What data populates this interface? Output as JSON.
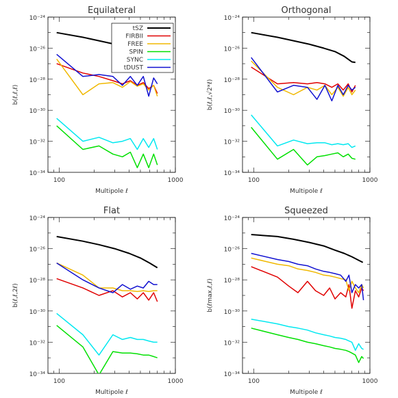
{
  "colors": {
    "tSZ": "#000000",
    "FIRBII": "#e00000",
    "FREE": "#f0b800",
    "SPIN": "#00e000",
    "SYNC": "#00e8f0",
    "tDUST": "#1010d0"
  },
  "chart_data": [
    {
      "type": "line",
      "title": "Equilateral",
      "xlabel": "Multipole ℓ",
      "ylabel": "b(ℓ,ℓ,ℓ)",
      "xscale": "log",
      "yscale": "log",
      "xlim": [
        80,
        1000
      ],
      "ylim": [
        1e-34,
        1e-24
      ],
      "xticklabels": [
        "100",
        "1000"
      ],
      "yticklabels": [
        "10⁻²⁴",
        "10⁻²⁶",
        "10⁻²⁸",
        "10⁻³⁰",
        "10⁻³²",
        "10⁻³⁴"
      ],
      "legend": {
        "placement": "top-right",
        "entries": [
          "tSZ",
          "FIRBII",
          "FREE",
          "SPIN",
          "SYNC",
          "tDUST"
        ]
      },
      "series": [
        {
          "name": "tSZ",
          "x": [
            95,
            160,
            220,
            300,
            400,
            500,
            600,
            700
          ],
          "y": [
            1e-25,
            5e-26,
            3e-26,
            1.8e-26,
            1e-26,
            6e-27,
            3.5e-27,
            2e-27
          ]
        },
        {
          "name": "FIRBII",
          "x": [
            95,
            160,
            220,
            290,
            350,
            410,
            470,
            530,
            590,
            650,
            700
          ],
          "y": [
            1e-27,
            2.5e-28,
            1.5e-28,
            8e-29,
            5e-29,
            8e-29,
            4e-29,
            6e-29,
            2.5e-29,
            4e-29,
            1.2e-29
          ]
        },
        {
          "name": "FREE",
          "x": [
            95,
            160,
            220,
            290,
            350,
            410,
            470,
            530,
            590,
            650,
            700
          ],
          "y": [
            2e-27,
            1e-29,
            5e-29,
            6e-29,
            3e-29,
            7e-29,
            3.5e-29,
            5e-29,
            2e-29,
            4e-29,
            8e-30
          ]
        },
        {
          "name": "SPIN",
          "x": [
            95,
            160,
            220,
            290,
            350,
            410,
            470,
            530,
            590,
            650,
            700
          ],
          "y": [
            1e-31,
            3e-33,
            5e-33,
            1.5e-33,
            1e-33,
            2e-33,
            2e-34,
            1.5e-33,
            2e-34,
            1.5e-33,
            3e-34
          ]
        },
        {
          "name": "SYNC",
          "x": [
            95,
            160,
            220,
            290,
            350,
            410,
            470,
            530,
            590,
            650,
            700
          ],
          "y": [
            3e-31,
            1e-32,
            1.8e-32,
            8e-33,
            1e-32,
            1.5e-32,
            3e-33,
            1.5e-32,
            4e-33,
            1.5e-32,
            3e-33
          ]
        },
        {
          "name": "tDUST",
          "x": [
            95,
            160,
            220,
            290,
            350,
            410,
            470,
            530,
            590,
            650,
            700
          ],
          "y": [
            4e-27,
            1.5e-28,
            2e-28,
            1.5e-28,
            4e-29,
            1.5e-28,
            4e-29,
            1.5e-28,
            8e-30,
            1.2e-28,
            5e-29
          ]
        }
      ]
    },
    {
      "type": "line",
      "title": "Orthogonal",
      "xlabel": "Multipole ℓ",
      "ylabel": "b(ℓ,ℓ,√2*ℓ)",
      "xscale": "log",
      "yscale": "log",
      "xlim": [
        80,
        1000
      ],
      "ylim": [
        1e-34,
        1e-24
      ],
      "xticklabels": [
        "100",
        "1000"
      ],
      "yticklabels": [
        "10⁻²⁴",
        "10⁻²⁶",
        "10⁻²⁸",
        "10⁻³⁰",
        "10⁻³²",
        "10⁻³⁴"
      ],
      "series": [
        {
          "name": "tSZ",
          "x": [
            95,
            160,
            220,
            300,
            400,
            500,
            600,
            700,
            750
          ],
          "y": [
            1e-25,
            5e-26,
            3e-26,
            1.8e-26,
            1e-26,
            6e-27,
            3e-27,
            1.3e-27,
            1.2e-27
          ]
        },
        {
          "name": "FIRBII",
          "x": [
            95,
            160,
            220,
            290,
            350,
            410,
            470,
            530,
            590,
            650,
            700,
            750
          ],
          "y": [
            6e-28,
            5e-29,
            6e-29,
            5e-29,
            6e-29,
            5e-29,
            3e-29,
            5e-29,
            2e-29,
            5e-29,
            1.5e-29,
            4e-29
          ]
        },
        {
          "name": "FREE",
          "x": [
            95,
            160,
            220,
            290,
            350,
            410,
            470,
            530,
            590,
            650,
            700,
            750
          ],
          "y": [
            1.5e-27,
            3e-29,
            1e-29,
            3e-29,
            2e-29,
            4e-29,
            1e-29,
            3e-29,
            8e-30,
            3e-29,
            1e-29,
            2e-29
          ]
        },
        {
          "name": "SPIN",
          "x": [
            95,
            160,
            220,
            290,
            350,
            410,
            470,
            530,
            590,
            650,
            700,
            750
          ],
          "y": [
            8e-32,
            7e-34,
            3e-33,
            3e-34,
            1e-33,
            1.2e-33,
            1.5e-33,
            1.8e-33,
            1e-33,
            1.5e-33,
            8e-34,
            7e-34
          ]
        },
        {
          "name": "SYNC",
          "x": [
            95,
            160,
            220,
            290,
            350,
            410,
            470,
            530,
            590,
            650,
            700,
            750
          ],
          "y": [
            5e-31,
            5e-33,
            1.2e-32,
            7e-33,
            8e-33,
            8e-33,
            6e-33,
            7e-33,
            6e-33,
            7e-33,
            4e-33,
            5e-33
          ]
        },
        {
          "name": "tDUST",
          "x": [
            95,
            160,
            220,
            290,
            350,
            410,
            470,
            530,
            590,
            650,
            700,
            750
          ],
          "y": [
            2.5e-27,
            1.5e-29,
            4e-29,
            3e-29,
            5e-30,
            4e-29,
            4e-30,
            4e-29,
            1e-29,
            4e-29,
            2e-29,
            3e-29
          ]
        }
      ]
    },
    {
      "type": "line",
      "title": "Flat",
      "xlabel": "Multipole ℓ",
      "ylabel": "b(ℓ,ℓ,2ℓ)",
      "xscale": "log",
      "yscale": "log",
      "xlim": [
        80,
        1000
      ],
      "ylim": [
        1e-34,
        1e-24
      ],
      "xticklabels": [
        "100",
        "1000"
      ],
      "yticklabels": [
        "10⁻²⁴",
        "10⁻²⁶",
        "10⁻²⁸",
        "10⁻³⁰",
        "10⁻³²",
        "10⁻³⁴"
      ],
      "series": [
        {
          "name": "tSZ",
          "x": [
            95,
            160,
            220,
            300,
            400,
            500,
            600,
            700
          ],
          "y": [
            6e-26,
            3e-26,
            1.8e-26,
            1e-26,
            5e-27,
            2.5e-27,
            1.2e-27,
            6e-28
          ]
        },
        {
          "name": "FIRBII",
          "x": [
            95,
            160,
            220,
            290,
            350,
            410,
            470,
            530,
            590,
            650,
            700
          ],
          "y": [
            1.2e-28,
            3e-29,
            1e-29,
            2e-29,
            8e-30,
            1.5e-29,
            6e-30,
            1.5e-29,
            5e-30,
            1.5e-29,
            4e-30
          ]
        },
        {
          "name": "FREE",
          "x": [
            95,
            160,
            220,
            290,
            350,
            410,
            470,
            530,
            590,
            650,
            700
          ],
          "y": [
            1.2e-27,
            2e-28,
            3e-29,
            3e-29,
            2e-29,
            2e-29,
            1.8e-29,
            2e-29,
            1.8e-29,
            2e-29,
            2e-29
          ]
        },
        {
          "name": "SPIN",
          "x": [
            95,
            160,
            220,
            290,
            350,
            410,
            470,
            530,
            590,
            650,
            700
          ],
          "y": [
            1.2e-31,
            5e-33,
            8e-35,
            2.5e-33,
            2e-33,
            2e-33,
            1.8e-33,
            1.5e-33,
            1.5e-33,
            1.2e-33,
            1e-33
          ]
        },
        {
          "name": "SYNC",
          "x": [
            95,
            160,
            220,
            290,
            350,
            410,
            470,
            530,
            590,
            650,
            700
          ],
          "y": [
            7e-31,
            3e-32,
            1.5e-33,
            3e-32,
            1.5e-32,
            2e-32,
            1.5e-32,
            1.5e-32,
            1.2e-32,
            1e-32,
            1e-32
          ]
        },
        {
          "name": "tDUST",
          "x": [
            95,
            160,
            220,
            290,
            350,
            410,
            470,
            530,
            590,
            650,
            700
          ],
          "y": [
            1.2e-27,
            1e-28,
            3e-29,
            1.5e-29,
            5e-29,
            2.5e-29,
            4e-29,
            3e-29,
            8e-29,
            5e-29,
            5e-29
          ]
        }
      ]
    },
    {
      "type": "line",
      "title": "Squeezed",
      "xlabel": "Multipole ℓ",
      "ylabel": "b(ℓmax,ℓ,ℓ)",
      "xscale": "log",
      "yscale": "log",
      "xlim": [
        80,
        1000
      ],
      "ylim": [
        1e-34,
        1e-24
      ],
      "xticklabels": [
        "100",
        "1000"
      ],
      "yticklabels": [
        "10⁻²⁴",
        "10⁻²⁶",
        "10⁻²⁸",
        "10⁻³⁰",
        "10⁻³²",
        "10⁻³⁴"
      ],
      "series": [
        {
          "name": "tSZ",
          "x": [
            95,
            160,
            220,
            300,
            400,
            500,
            600,
            700,
            800,
            870
          ],
          "y": [
            8e-26,
            6e-26,
            4e-26,
            2.5e-26,
            1.5e-26,
            8e-27,
            5e-27,
            3e-27,
            1.8e-27,
            1.3e-27
          ]
        },
        {
          "name": "FIRBII",
          "x": [
            95,
            160,
            200,
            240,
            290,
            340,
            400,
            450,
            500,
            560,
            620,
            660,
            700,
            750,
            800,
            850,
            880
          ],
          "y": [
            7e-28,
            1.5e-28,
            4e-29,
            1.5e-29,
            8e-29,
            2e-29,
            1e-29,
            3e-29,
            6e-30,
            1.5e-29,
            8e-30,
            5e-29,
            1.5e-30,
            2e-29,
            8e-30,
            3e-29,
            2e-29
          ]
        },
        {
          "name": "FREE",
          "x": [
            95,
            160,
            200,
            240,
            290,
            340,
            400,
            450,
            500,
            560,
            620,
            660,
            700,
            750,
            800,
            850,
            880
          ],
          "y": [
            2.5e-27,
            1e-27,
            8e-28,
            5e-28,
            4e-28,
            3e-28,
            2e-28,
            1.8e-28,
            1.5e-28,
            1.2e-28,
            1e-28,
            2e-29,
            8e-29,
            3e-29,
            1.5e-29,
            5e-29,
            3e-29
          ]
        },
        {
          "name": "SPIN",
          "x": [
            95,
            160,
            200,
            240,
            290,
            340,
            400,
            450,
            500,
            560,
            620,
            660,
            700,
            750,
            800,
            850,
            880
          ],
          "y": [
            8e-32,
            3e-32,
            2e-32,
            1.5e-32,
            1e-32,
            8e-33,
            6e-33,
            5e-33,
            4e-33,
            3.5e-33,
            3e-33,
            2.5e-33,
            2e-33,
            1.5e-33,
            5e-34,
            1.2e-33,
            9e-34
          ]
        },
        {
          "name": "SYNC",
          "x": [
            95,
            160,
            200,
            240,
            290,
            340,
            400,
            450,
            500,
            560,
            620,
            660,
            700,
            750,
            800,
            850,
            880
          ],
          "y": [
            3e-31,
            1.5e-31,
            1e-31,
            8e-32,
            6e-32,
            4e-32,
            3e-32,
            2.5e-32,
            2e-32,
            1.8e-32,
            1.5e-32,
            1.2e-32,
            1e-32,
            3e-33,
            8e-33,
            4e-33,
            3.5e-33
          ]
        },
        {
          "name": "tDUST",
          "x": [
            95,
            160,
            200,
            240,
            290,
            340,
            400,
            450,
            500,
            560,
            620,
            660,
            700,
            750,
            800,
            850,
            880
          ],
          "y": [
            5e-27,
            2e-27,
            1.5e-27,
            1e-27,
            8e-28,
            5e-28,
            3.5e-28,
            3e-28,
            2.5e-28,
            2e-28,
            8e-29,
            2e-28,
            1.5e-29,
            5e-29,
            3e-29,
            5e-29,
            5e-30
          ]
        }
      ]
    }
  ]
}
